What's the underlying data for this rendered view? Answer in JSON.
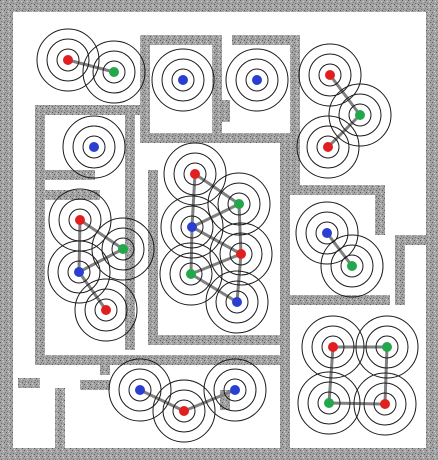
{
  "title": "",
  "colors": {
    "background": "#ffffff",
    "wall_fill": "#9a9a9a",
    "wall_speckle": "#6b6b6b",
    "ring": "#1a1a1a",
    "link": "#808080",
    "red": "#e02020",
    "green": "#22a84a",
    "blue": "#2a3fcf"
  },
  "node_colors_legend": [
    "red",
    "green",
    "blue"
  ],
  "rooms": [
    {
      "id": "room-top-left",
      "nodes": [
        "red",
        "green"
      ]
    },
    {
      "id": "room-top-mid-1",
      "nodes": [
        "blue"
      ]
    },
    {
      "id": "room-top-mid-2",
      "nodes": [
        "blue"
      ]
    },
    {
      "id": "room-top-right",
      "nodes": [
        "red",
        "green",
        "red"
      ]
    },
    {
      "id": "room-left-mid",
      "nodes": [
        "blue"
      ]
    },
    {
      "id": "room-left-lower",
      "nodes": [
        "red",
        "green",
        "blue",
        "red"
      ]
    },
    {
      "id": "room-center",
      "nodes": [
        "red",
        "green",
        "blue",
        "red",
        "green",
        "blue"
      ]
    },
    {
      "id": "room-right-mid",
      "nodes": [
        "blue",
        "green"
      ]
    },
    {
      "id": "room-bottom-center",
      "nodes": [
        "blue",
        "red",
        "blue"
      ]
    },
    {
      "id": "room-bottom-right",
      "nodes": [
        "red",
        "green",
        "green",
        "red"
      ]
    }
  ]
}
